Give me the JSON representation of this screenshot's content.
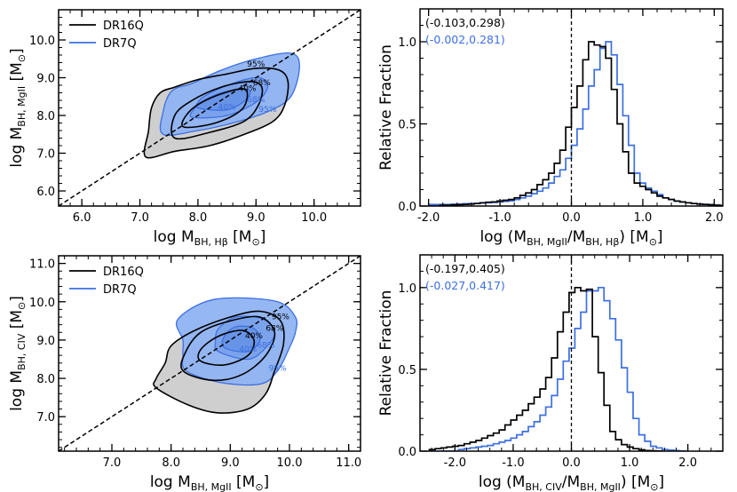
{
  "colors": {
    "dr16q": "#000000",
    "dr7q": "#3c6fe0",
    "dr16q_fill": "#cfcfcf",
    "dr7q_fill_outer": "#8fb3f2",
    "dr7q_fill_mid": "#6b97ea",
    "dr7q_fill_inner": "#5a88e4"
  },
  "chart_data": [
    {
      "type": "contour",
      "panel": "top-left",
      "xlabel": "log M_BH, Hβ [M_⊙]",
      "xlabel_parts": {
        "pre": "log M",
        "sub": "BH, Hβ",
        "post": " [M",
        "sun": "⊙",
        "end": "]"
      },
      "ylabel_parts": {
        "pre": "log M",
        "sub": "BH, MgII",
        "post": " [M",
        "sun": "⊙",
        "end": "]"
      },
      "xlim": [
        5.6,
        10.8
      ],
      "ylim": [
        5.6,
        10.8
      ],
      "xticks": [
        6.0,
        7.0,
        8.0,
        9.0,
        10.0
      ],
      "yticks": [
        6.0,
        7.0,
        8.0,
        9.0,
        10.0
      ],
      "tick_labels_x": [
        "6.0",
        "7.0",
        "8.0",
        "9.0",
        "10.0"
      ],
      "tick_labels_y": [
        "6.0",
        "7.0",
        "8.0",
        "9.0",
        "10.0"
      ],
      "one_to_one_line": true,
      "legend": {
        "placement": "top-left",
        "entries": [
          "DR16Q",
          "DR7Q"
        ]
      },
      "contour_levels": [
        "40%",
        "68%",
        "95%"
      ],
      "series": [
        {
          "name": "DR16Q",
          "levels": {
            "95%": [
              [
                7.1,
                6.9
              ],
              [
                7.6,
                7.05
              ],
              [
                8.2,
                7.2
              ],
              [
                8.8,
                7.5
              ],
              [
                9.3,
                7.85
              ],
              [
                9.5,
                8.3
              ],
              [
                9.55,
                8.9
              ],
              [
                9.4,
                9.2
              ],
              [
                9.0,
                9.25
              ],
              [
                8.5,
                9.1
              ],
              [
                8.0,
                8.95
              ],
              [
                7.6,
                8.75
              ],
              [
                7.35,
                8.6
              ],
              [
                7.2,
                8.2
              ],
              [
                7.15,
                7.6
              ]
            ],
            "68%": [
              [
                7.6,
                7.4
              ],
              [
                8.2,
                7.55
              ],
              [
                8.8,
                7.85
              ],
              [
                9.05,
                8.3
              ],
              [
                9.1,
                8.75
              ],
              [
                8.9,
                8.9
              ],
              [
                8.4,
                8.75
              ],
              [
                7.9,
                8.4
              ],
              [
                7.6,
                8.0
              ]
            ],
            "40%": [
              [
                7.75,
                7.7
              ],
              [
                8.3,
                7.8
              ],
              [
                8.75,
                8.15
              ],
              [
                8.85,
                8.6
              ],
              [
                8.7,
                8.7
              ],
              [
                8.2,
                8.45
              ],
              [
                7.85,
                8.1
              ]
            ]
          }
        },
        {
          "name": "DR7Q",
          "levels": {
            "95%": [
              [
                7.4,
                7.5
              ],
              [
                8.0,
                7.6
              ],
              [
                8.6,
                7.8
              ],
              [
                9.2,
                8.1
              ],
              [
                9.6,
                8.5
              ],
              [
                9.75,
                9.3
              ],
              [
                9.6,
                9.65
              ],
              [
                9.0,
                9.5
              ],
              [
                8.4,
                9.2
              ],
              [
                7.9,
                8.85
              ],
              [
                7.55,
                8.65
              ],
              [
                7.4,
                8.1
              ]
            ],
            "68%": [
              [
                7.9,
                7.95
              ],
              [
                8.5,
                8.0
              ],
              [
                9.0,
                8.35
              ],
              [
                9.2,
                8.75
              ],
              [
                9.05,
                9.0
              ],
              [
                8.6,
                8.85
              ],
              [
                8.1,
                8.5
              ],
              [
                7.95,
                8.2
              ]
            ],
            "40%": [
              [
                8.0,
                8.2
              ],
              [
                8.5,
                8.15
              ],
              [
                8.85,
                8.45
              ],
              [
                8.85,
                8.7
              ],
              [
                8.4,
                8.6
              ],
              [
                8.05,
                8.35
              ]
            ]
          }
        }
      ]
    },
    {
      "type": "histogram",
      "panel": "top-right",
      "xlabel_parts": {
        "pre": "log (M",
        "sub1": "BH, MgII",
        "mid": "/M",
        "sub2": "BH, Hβ",
        "post": ") [M",
        "sun": "⊙",
        "end": "]"
      },
      "ylabel": "Relative Fraction",
      "xlim": [
        -2.12,
        2.12
      ],
      "ylim": [
        0.0,
        1.2
      ],
      "xticks": [
        -2.0,
        -1.0,
        0.0,
        1.0,
        2.0
      ],
      "yticks": [
        0.0,
        0.5,
        1.0
      ],
      "tick_labels_x": [
        "-2.0",
        "-1.0",
        "0.0",
        "1.0",
        "2.0"
      ],
      "tick_labels_y": [
        "0.0",
        "0.5",
        "1.0"
      ],
      "vline_x": 0.0,
      "annotations": [
        {
          "text": "(-0.103,0.298)",
          "series": "DR16Q"
        },
        {
          "text": "(-0.002,0.281)",
          "series": "DR7Q"
        }
      ],
      "bin_start": -2.0,
      "bin_width": 0.08,
      "series": [
        {
          "name": "DR16Q",
          "values": [
            0.0,
            0.0,
            0.005,
            0.005,
            0.007,
            0.008,
            0.01,
            0.012,
            0.015,
            0.02,
            0.023,
            0.025,
            0.03,
            0.035,
            0.04,
            0.05,
            0.065,
            0.08,
            0.1,
            0.13,
            0.16,
            0.2,
            0.26,
            0.34,
            0.48,
            0.6,
            0.73,
            0.89,
            1.0,
            0.98,
            0.97,
            0.9,
            0.71,
            0.5,
            0.33,
            0.2,
            0.14,
            0.12,
            0.1,
            0.08,
            0.06,
            0.05,
            0.04,
            0.03,
            0.025,
            0.02,
            0.015,
            0.012,
            0.01,
            0.008,
            0.005,
            0.003,
            0.002
          ]
        },
        {
          "name": "DR7Q",
          "values": [
            0.01,
            0.01,
            0.01,
            0.01,
            0.012,
            0.012,
            0.014,
            0.015,
            0.016,
            0.018,
            0.02,
            0.022,
            0.025,
            0.028,
            0.032,
            0.04,
            0.05,
            0.06,
            0.075,
            0.09,
            0.11,
            0.14,
            0.18,
            0.22,
            0.29,
            0.37,
            0.47,
            0.59,
            0.73,
            0.83,
            0.96,
            1.0,
            0.92,
            0.74,
            0.55,
            0.37,
            0.2,
            0.14,
            0.11,
            0.09,
            0.07,
            0.05,
            0.04,
            0.03,
            0.025,
            0.02,
            0.015,
            0.012,
            0.01,
            0.008,
            0.006,
            0.004,
            0.003
          ]
        }
      ]
    },
    {
      "type": "contour",
      "panel": "bottom-left",
      "xlabel_parts": {
        "pre": "log M",
        "sub": "BH, MgII",
        "post": " [M",
        "sun": "⊙",
        "end": "]"
      },
      "ylabel_parts": {
        "pre": "log M",
        "sub": "BH, CIV",
        "post": " [M",
        "sun": "⊙",
        "end": "]"
      },
      "xlim": [
        6.1,
        11.2
      ],
      "ylim": [
        6.1,
        11.2
      ],
      "xticks": [
        7.0,
        8.0,
        9.0,
        10.0,
        11.0
      ],
      "yticks": [
        7.0,
        8.0,
        9.0,
        10.0,
        11.0
      ],
      "tick_labels_x": [
        "7.0",
        "8.0",
        "9.0",
        "10.0",
        "11.0"
      ],
      "tick_labels_y": [
        "7.0",
        "8.0",
        "9.0",
        "10.0",
        "11.0"
      ],
      "one_to_one_line": true,
      "legend": {
        "placement": "top-left",
        "entries": [
          "DR16Q",
          "DR7Q"
        ]
      },
      "contour_levels": [
        "40%",
        "68%",
        "95%"
      ],
      "series": [
        {
          "name": "DR16Q",
          "levels": {
            "95%": [
              [
                7.75,
                7.75
              ],
              [
                8.3,
                7.3
              ],
              [
                8.8,
                7.1
              ],
              [
                9.3,
                7.2
              ],
              [
                9.6,
                7.6
              ],
              [
                9.75,
                8.2
              ],
              [
                9.9,
                8.9
              ],
              [
                9.85,
                9.5
              ],
              [
                9.5,
                9.75
              ],
              [
                9.0,
                9.6
              ],
              [
                8.4,
                9.25
              ],
              [
                8.0,
                8.85
              ],
              [
                7.9,
                8.4
              ],
              [
                7.75,
                8.0
              ]
            ],
            "68%": [
              [
                8.2,
                8.2
              ],
              [
                8.7,
                7.95
              ],
              [
                9.2,
                8.1
              ],
              [
                9.6,
                8.6
              ],
              [
                9.75,
                9.2
              ],
              [
                9.5,
                9.6
              ],
              [
                9.0,
                9.5
              ],
              [
                8.5,
                9.2
              ],
              [
                8.25,
                8.7
              ]
            ],
            "40%": [
              [
                8.5,
                8.45
              ],
              [
                8.9,
                8.35
              ],
              [
                9.3,
                8.6
              ],
              [
                9.4,
                9.0
              ],
              [
                9.2,
                9.25
              ],
              [
                8.8,
                9.1
              ],
              [
                8.5,
                8.75
              ]
            ]
          }
        },
        {
          "name": "DR7Q",
          "levels": {
            "95%": [
              [
                8.25,
                8.2
              ],
              [
                8.8,
                7.9
              ],
              [
                9.5,
                7.85
              ],
              [
                9.8,
                8.2
              ],
              [
                10.0,
                8.8
              ],
              [
                10.1,
                9.2
              ],
              [
                10.1,
                9.6
              ],
              [
                9.8,
                10.0
              ],
              [
                9.0,
                10.1
              ],
              [
                8.5,
                9.95
              ],
              [
                8.1,
                9.5
              ],
              [
                8.2,
                9.0
              ],
              [
                8.2,
                8.6
              ]
            ],
            "68%": [
              [
                8.8,
                8.7
              ],
              [
                9.3,
                8.5
              ],
              [
                9.6,
                8.8
              ],
              [
                9.75,
                9.2
              ],
              [
                9.55,
                9.55
              ],
              [
                9.1,
                9.6
              ],
              [
                8.8,
                9.3
              ],
              [
                8.75,
                8.95
              ]
            ],
            "40%": [
              [
                8.9,
                8.8
              ],
              [
                9.3,
                8.7
              ],
              [
                9.5,
                9.0
              ],
              [
                9.4,
                9.3
              ],
              [
                9.1,
                9.35
              ],
              [
                8.9,
                9.1
              ]
            ]
          }
        }
      ]
    },
    {
      "type": "histogram",
      "panel": "bottom-right",
      "xlabel_parts": {
        "pre": "log (M",
        "sub1": "BH, CIV",
        "mid": "/M",
        "sub2": "BH, MgII",
        "post": ") [M",
        "sun": "⊙",
        "end": "]"
      },
      "ylabel": "Relative Fraction",
      "xlim": [
        -2.6,
        2.6
      ],
      "ylim": [
        0.0,
        1.2
      ],
      "xticks": [
        -2.0,
        -1.0,
        0.0,
        1.0,
        2.0
      ],
      "yticks": [
        0.0,
        0.5,
        1.0
      ],
      "tick_labels_x": [
        "-2.0",
        "-1.0",
        "0.0",
        "1.0",
        "2.0"
      ],
      "tick_labels_y": [
        "0.0",
        "0.5",
        "1.0"
      ],
      "vline_x": 0.0,
      "annotations": [
        {
          "text": "(-0.197,0.405)",
          "series": "DR16Q"
        },
        {
          "text": "(-0.027,0.417)",
          "series": "DR7Q"
        }
      ],
      "bin_start": -2.44,
      "bin_width": 0.1,
      "series": [
        {
          "name": "DR16Q",
          "values": [
            0.01,
            0.015,
            0.02,
            0.025,
            0.03,
            0.035,
            0.045,
            0.055,
            0.065,
            0.08,
            0.095,
            0.11,
            0.13,
            0.16,
            0.19,
            0.22,
            0.25,
            0.29,
            0.33,
            0.38,
            0.45,
            0.57,
            0.73,
            0.85,
            0.97,
            1.0,
            0.98,
            0.99,
            0.7,
            0.48,
            0.28,
            0.12,
            0.07,
            0.04,
            0.025,
            0.015,
            0.008,
            0.004,
            0.002,
            0.001
          ]
        },
        {
          "name": "DR7Q",
          "values": [
            0.0,
            0.0,
            0.0,
            0.0,
            0.0,
            0.01,
            0.015,
            0.02,
            0.025,
            0.03,
            0.035,
            0.045,
            0.055,
            0.065,
            0.08,
            0.1,
            0.12,
            0.15,
            0.18,
            0.22,
            0.27,
            0.34,
            0.44,
            0.55,
            0.63,
            0.75,
            0.85,
            0.98,
            0.98,
            1.0,
            0.92,
            0.81,
            0.68,
            0.51,
            0.36,
            0.2,
            0.1,
            0.06,
            0.03,
            0.02,
            0.01,
            0.006,
            0.003,
            0.001
          ]
        }
      ]
    }
  ]
}
